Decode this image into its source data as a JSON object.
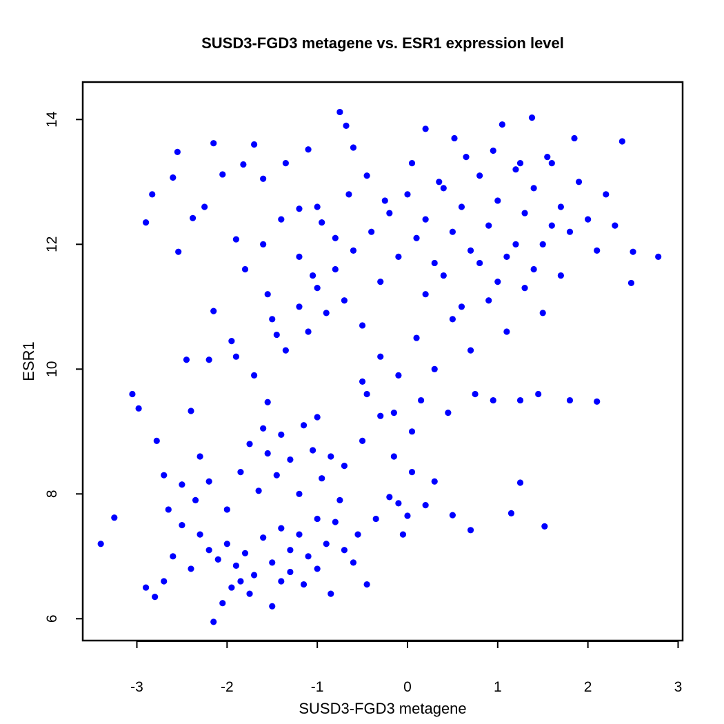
{
  "chart_data": {
    "type": "scatter",
    "title": "SUSD3-FGD3 metagene vs. ESR1 expression level",
    "xlabel": "SUSD3-FGD3 metagene",
    "ylabel": "ESR1",
    "xlim": [
      -3.6,
      3.05
    ],
    "ylim": [
      5.65,
      14.6
    ],
    "x_ticks": [
      -3,
      -2,
      -1,
      0,
      1,
      2,
      3
    ],
    "y_ticks": [
      6,
      8,
      10,
      12,
      14
    ],
    "x_tick_labels": [
      "-3",
      "-2",
      "-1",
      "0",
      "1",
      "2",
      "3"
    ],
    "y_tick_labels": [
      "6",
      "8",
      "10",
      "12",
      "14"
    ],
    "grid": false,
    "legend": "none",
    "point_color": "#0000ff",
    "series": [
      {
        "points": [
          [
            -3.4,
            7.2
          ],
          [
            -3.25,
            7.62
          ],
          [
            -3.05,
            9.6
          ],
          [
            -2.98,
            9.37
          ],
          [
            -2.9,
            12.35
          ],
          [
            -2.83,
            12.8
          ],
          [
            -2.78,
            8.85
          ],
          [
            -2.7,
            8.3
          ],
          [
            -2.6,
            13.07
          ],
          [
            -2.54,
            11.88
          ],
          [
            -2.55,
            13.48
          ],
          [
            -2.45,
            10.15
          ],
          [
            -2.4,
            9.33
          ],
          [
            -2.38,
            12.42
          ],
          [
            -2.3,
            8.6
          ],
          [
            -2.25,
            12.6
          ],
          [
            -2.2,
            10.15
          ],
          [
            -2.15,
            10.93
          ],
          [
            -2.15,
            13.62
          ],
          [
            -2.05,
            13.12
          ],
          [
            -1.95,
            10.45
          ],
          [
            -1.9,
            12.08
          ],
          [
            -1.82,
            13.28
          ],
          [
            -1.7,
            13.6
          ],
          [
            -1.6,
            13.05
          ],
          [
            -1.55,
            9.47
          ],
          [
            -1.45,
            10.55
          ],
          [
            -1.35,
            13.3
          ],
          [
            -1.2,
            12.57
          ],
          [
            -1.1,
            13.52
          ],
          [
            -1.05,
            11.5
          ],
          [
            -1.0,
            9.23
          ],
          [
            -0.95,
            12.35
          ],
          [
            -0.75,
            14.12
          ],
          [
            -0.68,
            13.9
          ],
          [
            -0.6,
            13.55
          ],
          [
            -0.5,
            8.85
          ],
          [
            -0.45,
            9.6
          ],
          [
            -0.35,
            7.6
          ],
          [
            -0.3,
            9.25
          ],
          [
            -0.2,
            7.95
          ],
          [
            -0.15,
            8.6
          ],
          [
            -0.1,
            7.85
          ],
          [
            -0.05,
            7.35
          ],
          [
            0.0,
            7.65
          ],
          [
            0.05,
            8.35
          ],
          [
            0.2,
            7.82
          ],
          [
            0.3,
            8.2
          ],
          [
            0.5,
            7.66
          ],
          [
            0.7,
            7.42
          ],
          [
            1.15,
            7.69
          ],
          [
            1.25,
            8.18
          ],
          [
            1.52,
            7.48
          ],
          [
            1.8,
            9.5
          ],
          [
            2.1,
            9.48
          ],
          [
            2.48,
            11.38
          ],
          [
            2.5,
            11.88
          ],
          [
            2.78,
            11.8
          ],
          [
            2.38,
            13.65
          ],
          [
            1.38,
            14.03
          ],
          [
            1.05,
            13.92
          ],
          [
            0.52,
            13.7
          ],
          [
            0.2,
            13.85
          ],
          [
            -2.3,
            7.35
          ],
          [
            -2.2,
            7.1
          ],
          [
            -2.1,
            6.95
          ],
          [
            -2.0,
            7.2
          ],
          [
            -1.9,
            6.85
          ],
          [
            -1.8,
            7.05
          ],
          [
            -1.7,
            6.7
          ],
          [
            -1.6,
            7.3
          ],
          [
            -1.5,
            6.9
          ],
          [
            -1.4,
            7.45
          ],
          [
            -1.3,
            7.1
          ],
          [
            -1.2,
            7.35
          ],
          [
            -1.1,
            7.0
          ],
          [
            -1.0,
            7.6
          ],
          [
            -0.9,
            7.2
          ],
          [
            -2.4,
            6.8
          ],
          [
            -2.5,
            7.5
          ],
          [
            -2.6,
            7.0
          ],
          [
            -2.7,
            6.6
          ],
          [
            -2.8,
            6.35
          ],
          [
            -2.9,
            6.5
          ],
          [
            -2.15,
            5.95
          ],
          [
            -2.05,
            6.25
          ],
          [
            -1.95,
            6.5
          ],
          [
            -1.85,
            6.6
          ],
          [
            -1.75,
            6.4
          ],
          [
            -1.5,
            6.2
          ],
          [
            -1.4,
            6.6
          ],
          [
            -1.3,
            6.75
          ],
          [
            -1.15,
            6.55
          ],
          [
            -1.0,
            6.8
          ],
          [
            -0.85,
            6.4
          ],
          [
            -2.35,
            7.9
          ],
          [
            -2.2,
            8.2
          ],
          [
            -2.0,
            7.75
          ],
          [
            -1.85,
            8.35
          ],
          [
            -1.65,
            8.05
          ],
          [
            -1.55,
            8.65
          ],
          [
            -1.45,
            8.3
          ],
          [
            -1.3,
            8.55
          ],
          [
            -1.2,
            8.0
          ],
          [
            -1.05,
            8.7
          ],
          [
            -0.95,
            8.25
          ],
          [
            -0.85,
            8.6
          ],
          [
            -0.75,
            7.9
          ],
          [
            -0.7,
            8.45
          ],
          [
            -1.75,
            8.8
          ],
          [
            -1.6,
            9.05
          ],
          [
            -1.4,
            8.95
          ],
          [
            -1.15,
            9.1
          ],
          [
            -2.5,
            8.15
          ],
          [
            -2.65,
            7.75
          ],
          [
            -0.6,
            6.9
          ],
          [
            -0.55,
            7.35
          ],
          [
            -0.7,
            7.1
          ],
          [
            -0.45,
            6.55
          ],
          [
            -0.8,
            7.55
          ],
          [
            -1.9,
            10.2
          ],
          [
            -1.7,
            9.9
          ],
          [
            -1.5,
            10.8
          ],
          [
            -1.35,
            10.3
          ],
          [
            -1.2,
            11.0
          ],
          [
            -1.1,
            10.6
          ],
          [
            -1.0,
            11.3
          ],
          [
            -0.9,
            10.9
          ],
          [
            -0.8,
            11.6
          ],
          [
            -0.7,
            11.1
          ],
          [
            -0.6,
            11.9
          ],
          [
            -0.5,
            10.7
          ],
          [
            -0.4,
            12.2
          ],
          [
            -0.3,
            11.4
          ],
          [
            -0.2,
            12.5
          ],
          [
            -0.1,
            11.8
          ],
          [
            0.0,
            12.8
          ],
          [
            0.1,
            12.1
          ],
          [
            0.2,
            12.4
          ],
          [
            0.3,
            11.7
          ],
          [
            0.4,
            12.9
          ],
          [
            0.5,
            12.2
          ],
          [
            0.6,
            12.6
          ],
          [
            0.7,
            11.9
          ],
          [
            0.8,
            13.1
          ],
          [
            0.9,
            12.3
          ],
          [
            1.0,
            12.7
          ],
          [
            1.1,
            11.8
          ],
          [
            1.2,
            13.2
          ],
          [
            1.3,
            12.5
          ],
          [
            1.4,
            12.9
          ],
          [
            1.5,
            12.0
          ],
          [
            1.6,
            13.3
          ],
          [
            1.7,
            12.6
          ],
          [
            1.8,
            12.2
          ],
          [
            1.9,
            13.0
          ],
          [
            2.0,
            12.4
          ],
          [
            2.1,
            11.9
          ],
          [
            2.2,
            12.8
          ],
          [
            2.3,
            12.3
          ],
          [
            -0.5,
            9.8
          ],
          [
            -0.3,
            10.2
          ],
          [
            -0.1,
            9.9
          ],
          [
            0.1,
            10.5
          ],
          [
            0.3,
            10.0
          ],
          [
            0.5,
            10.8
          ],
          [
            0.7,
            10.3
          ],
          [
            0.9,
            11.1
          ],
          [
            1.1,
            10.6
          ],
          [
            1.3,
            11.3
          ],
          [
            1.5,
            10.9
          ],
          [
            1.7,
            11.5
          ],
          [
            0.2,
            11.2
          ],
          [
            0.4,
            11.5
          ],
          [
            0.6,
            11.0
          ],
          [
            0.8,
            11.7
          ],
          [
            1.0,
            11.4
          ],
          [
            1.2,
            12.0
          ],
          [
            1.4,
            11.6
          ],
          [
            1.6,
            12.3
          ],
          [
            -1.6,
            12.0
          ],
          [
            -1.4,
            12.4
          ],
          [
            -1.2,
            11.8
          ],
          [
            -1.0,
            12.6
          ],
          [
            -0.8,
            12.1
          ],
          [
            -1.8,
            11.6
          ],
          [
            -1.55,
            11.2
          ],
          [
            -0.65,
            12.8
          ],
          [
            -0.45,
            13.1
          ],
          [
            -0.25,
            12.7
          ],
          [
            0.05,
            13.3
          ],
          [
            0.35,
            13.0
          ],
          [
            0.65,
            13.4
          ],
          [
            0.95,
            13.5
          ],
          [
            1.25,
            13.3
          ],
          [
            1.55,
            13.4
          ],
          [
            1.85,
            13.7
          ],
          [
            0.15,
            9.5
          ],
          [
            0.45,
            9.3
          ],
          [
            0.75,
            9.6
          ],
          [
            0.95,
            9.5
          ],
          [
            1.25,
            9.5
          ],
          [
            1.45,
            9.6
          ],
          [
            -0.15,
            9.3
          ],
          [
            0.05,
            9.0
          ]
        ]
      }
    ]
  }
}
